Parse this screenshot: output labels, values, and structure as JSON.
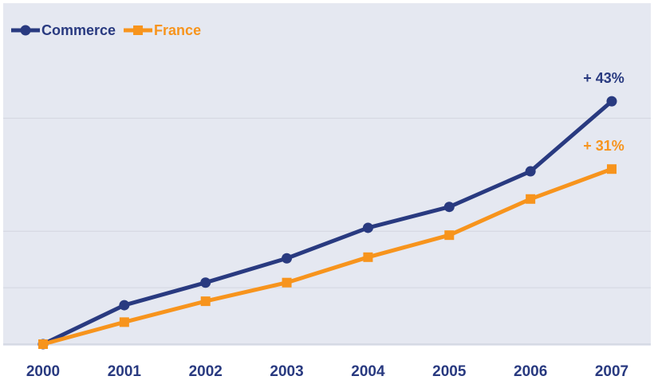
{
  "chart_data": {
    "type": "line",
    "categories": [
      "2000",
      "2001",
      "2002",
      "2003",
      "2004",
      "2005",
      "2006",
      "2007"
    ],
    "series": [
      {
        "name": "Commerce",
        "color": "#293a80",
        "marker": "circle",
        "values": [
          0,
          6.9,
          10.9,
          15.2,
          20.6,
          24.3,
          30.6,
          43
        ],
        "value_labels": [
          null,
          null,
          null,
          null,
          null,
          null,
          null,
          "+ 43%"
        ]
      },
      {
        "name": "France",
        "color": "#f7941d",
        "marker": "square",
        "values": [
          0,
          3.9,
          7.6,
          10.9,
          15.4,
          19.3,
          25.7,
          31
        ],
        "value_labels": [
          null,
          null,
          null,
          null,
          null,
          null,
          null,
          "+ 31%"
        ]
      }
    ],
    "ylim": [
      0,
      60
    ],
    "yticks": [
      0,
      10,
      20,
      40
    ],
    "grid": true,
    "legend": "top-left"
  }
}
